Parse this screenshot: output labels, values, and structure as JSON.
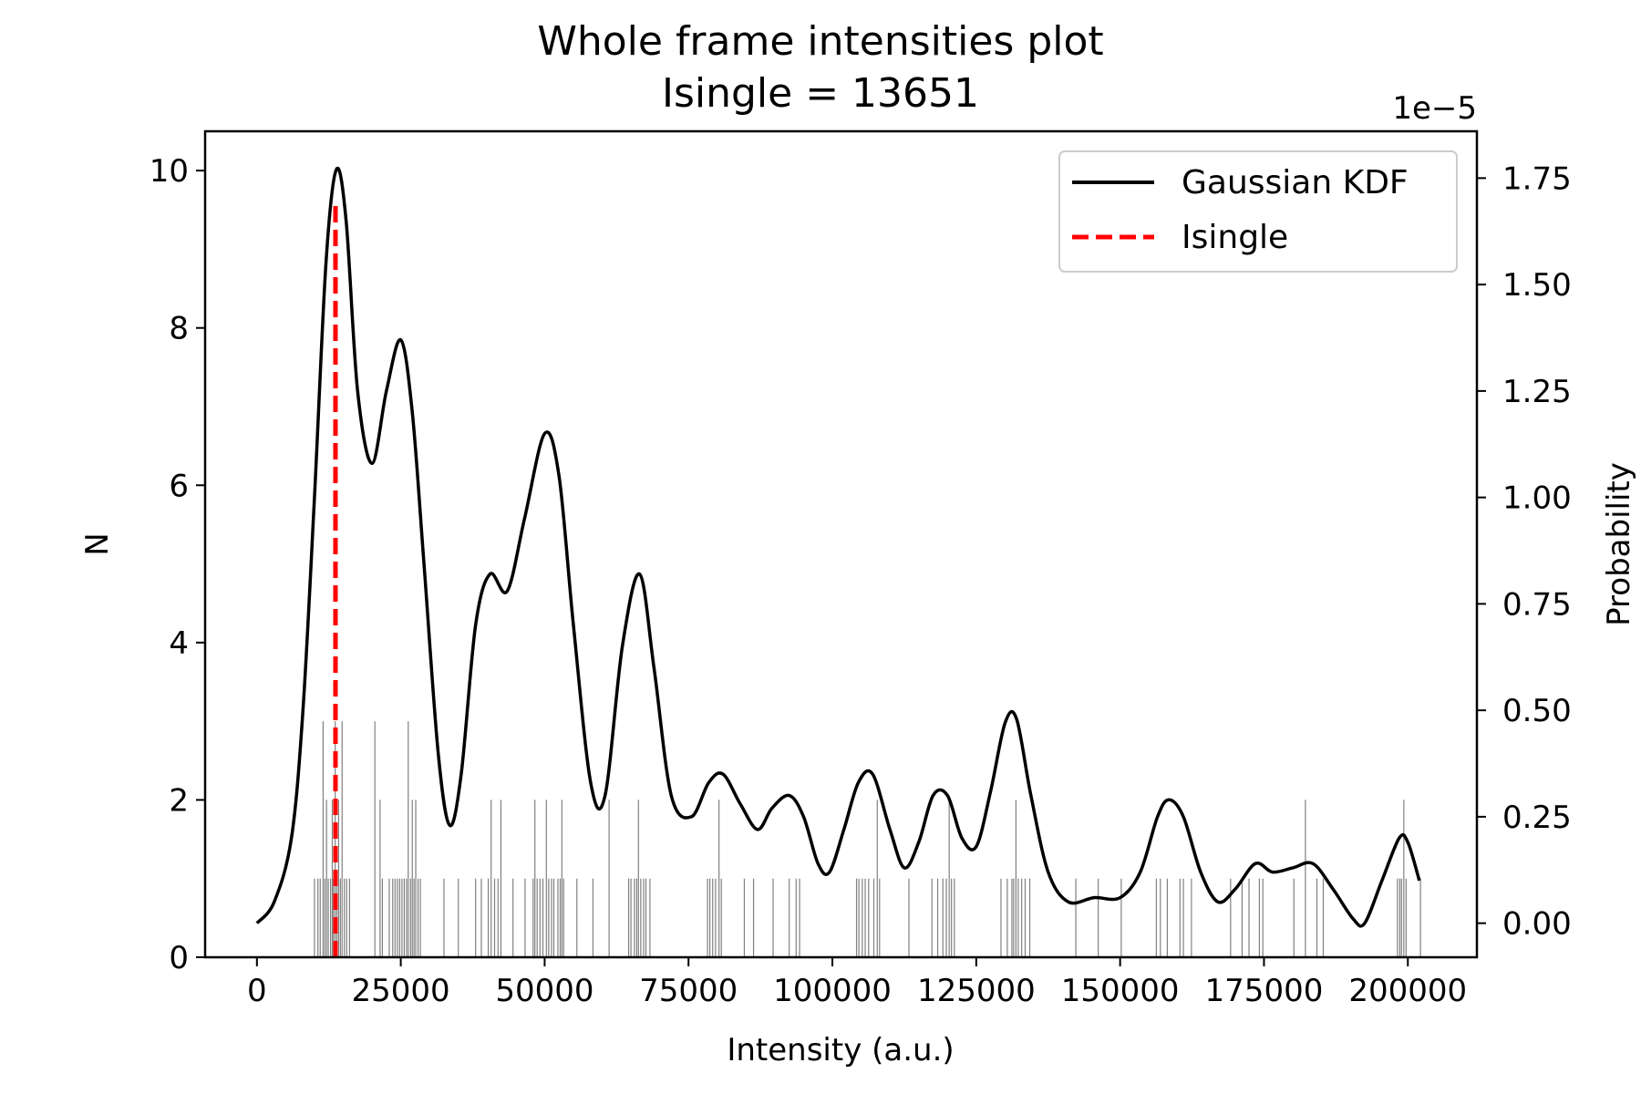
{
  "chart_data": {
    "type": "line",
    "title": "Whole frame intensities plot",
    "subtitle": "Isingle = 13651",
    "xlabel": "Intensity (a.u.)",
    "ylabel": "N",
    "y2label": "Probability",
    "y2_multiplier": "1e−5",
    "xlim": [
      -9000,
      212000
    ],
    "ylim": [
      0,
      10.5
    ],
    "y2lim": [
      -8e-07,
      1.86e-05
    ],
    "x_ticks": [
      0,
      25000,
      50000,
      75000,
      100000,
      125000,
      150000,
      175000,
      200000
    ],
    "x_tick_labels": [
      "0",
      "25000",
      "50000",
      "75000",
      "100000",
      "125000",
      "150000",
      "175000",
      "200000"
    ],
    "y_ticks": [
      0,
      2,
      4,
      6,
      8,
      10
    ],
    "y_tick_labels": [
      "0",
      "2",
      "4",
      "6",
      "8",
      "10"
    ],
    "y2_ticks": [
      0,
      2.5e-06,
      5e-06,
      7.5e-06,
      1e-05,
      1.25e-05,
      1.5e-05,
      1.75e-05
    ],
    "y2_tick_labels": [
      "0.00",
      "0.25",
      "0.50",
      "0.75",
      "1.00",
      "1.25",
      "1.50",
      "1.75"
    ],
    "legend_position": "top-right",
    "grid": false,
    "series": [
      {
        "name": "Gaussian KDF",
        "axis": "right",
        "color": "#000000",
        "style": "solid",
        "points": [
          [
            0,
            0.0
          ],
          [
            3000,
            5e-07
          ],
          [
            6000,
            2e-06
          ],
          [
            8000,
            5e-06
          ],
          [
            10000,
            1e-05
          ],
          [
            12000,
            1.55e-05
          ],
          [
            13800,
            1.77e-05
          ],
          [
            15500,
            1.65e-05
          ],
          [
            17500,
            1.25e-05
          ],
          [
            20000,
            1.08e-05
          ],
          [
            22500,
            1.25e-05
          ],
          [
            25000,
            1.37e-05
          ],
          [
            27000,
            1.2e-05
          ],
          [
            29000,
            8.5e-06
          ],
          [
            31500,
            4e-06
          ],
          [
            33500,
            2.3e-06
          ],
          [
            35500,
            3.5e-06
          ],
          [
            38000,
            7e-06
          ],
          [
            40500,
            8.2e-06
          ],
          [
            43500,
            7.8e-06
          ],
          [
            46500,
            9.5e-06
          ],
          [
            50000,
            1.15e-05
          ],
          [
            52500,
            1.05e-05
          ],
          [
            55000,
            7e-06
          ],
          [
            58000,
            3.3e-06
          ],
          [
            60500,
            3e-06
          ],
          [
            63500,
            6.5e-06
          ],
          [
            66500,
            8.2e-06
          ],
          [
            69000,
            6e-06
          ],
          [
            72000,
            3e-06
          ],
          [
            75500,
            2.5e-06
          ],
          [
            78500,
            3.3e-06
          ],
          [
            81000,
            3.5e-06
          ],
          [
            84000,
            2.8e-06
          ],
          [
            87000,
            2.2e-06
          ],
          [
            89500,
            2.7e-06
          ],
          [
            92500,
            3e-06
          ],
          [
            95000,
            2.5e-06
          ],
          [
            97500,
            1.4e-06
          ],
          [
            99500,
            1.2e-06
          ],
          [
            102000,
            2.2e-06
          ],
          [
            104500,
            3.3e-06
          ],
          [
            107000,
            3.5e-06
          ],
          [
            110000,
            2.2e-06
          ],
          [
            112500,
            1.3e-06
          ],
          [
            115000,
            1.9e-06
          ],
          [
            117500,
            3e-06
          ],
          [
            120000,
            3e-06
          ],
          [
            122500,
            2e-06
          ],
          [
            125000,
            1.8e-06
          ],
          [
            127500,
            3.1e-06
          ],
          [
            130000,
            4.7e-06
          ],
          [
            132000,
            4.8e-06
          ],
          [
            134500,
            3e-06
          ],
          [
            137500,
            1.2e-06
          ],
          [
            141000,
            5e-07
          ],
          [
            145500,
            6e-07
          ],
          [
            150000,
            6e-07
          ],
          [
            153500,
            1.2e-06
          ],
          [
            156500,
            2.5e-06
          ],
          [
            158500,
            2.9e-06
          ],
          [
            161000,
            2.5e-06
          ],
          [
            164000,
            1.2e-06
          ],
          [
            167000,
            5e-07
          ],
          [
            170000,
            8e-07
          ],
          [
            173500,
            1.4e-06
          ],
          [
            176500,
            1.2e-06
          ],
          [
            180000,
            1.3e-06
          ],
          [
            183500,
            1.4e-06
          ],
          [
            187000,
            8e-07
          ],
          [
            190500,
            1e-07
          ],
          [
            192500,
            0.0
          ],
          [
            195500,
            1e-06
          ],
          [
            198500,
            2e-06
          ],
          [
            200000,
            1.9e-06
          ],
          [
            202000,
            1e-06
          ]
        ]
      },
      {
        "name": "Isingle",
        "axis": "left",
        "color": "#ff0000",
        "style": "dashed",
        "x": 13651,
        "y_range": [
          0,
          9.6
        ]
      }
    ],
    "rug": {
      "color": "#808080",
      "axis": "left",
      "ticks": [
        [
          10000,
          1
        ],
        [
          10600,
          1
        ],
        [
          11000,
          1
        ],
        [
          11500,
          3
        ],
        [
          11800,
          1
        ],
        [
          12100,
          2
        ],
        [
          12400,
          1
        ],
        [
          12800,
          1
        ],
        [
          13100,
          2
        ],
        [
          13300,
          1
        ],
        [
          13600,
          3
        ],
        [
          13900,
          1
        ],
        [
          14200,
          2
        ],
        [
          14500,
          1
        ],
        [
          14800,
          3
        ],
        [
          15200,
          1
        ],
        [
          15600,
          1
        ],
        [
          16100,
          1
        ],
        [
          20500,
          3
        ],
        [
          21400,
          2
        ],
        [
          21800,
          1
        ],
        [
          23000,
          1
        ],
        [
          23600,
          1
        ],
        [
          24000,
          1
        ],
        [
          24400,
          1
        ],
        [
          24800,
          1
        ],
        [
          25200,
          1
        ],
        [
          25600,
          1
        ],
        [
          26000,
          1
        ],
        [
          26300,
          3
        ],
        [
          26700,
          1
        ],
        [
          27000,
          2
        ],
        [
          27300,
          1
        ],
        [
          27600,
          2
        ],
        [
          28000,
          1
        ],
        [
          28400,
          1
        ],
        [
          32500,
          1
        ],
        [
          35000,
          1
        ],
        [
          38000,
          1
        ],
        [
          39000,
          1
        ],
        [
          40200,
          1
        ],
        [
          40700,
          2
        ],
        [
          41300,
          1
        ],
        [
          41900,
          1
        ],
        [
          42400,
          2
        ],
        [
          44500,
          1
        ],
        [
          46600,
          1
        ],
        [
          48000,
          1
        ],
        [
          48300,
          2
        ],
        [
          48700,
          1
        ],
        [
          49200,
          1
        ],
        [
          49700,
          1
        ],
        [
          50300,
          2
        ],
        [
          50700,
          1
        ],
        [
          51200,
          1
        ],
        [
          51600,
          1
        ],
        [
          52300,
          1
        ],
        [
          52700,
          1
        ],
        [
          53000,
          2
        ],
        [
          53300,
          1
        ],
        [
          55600,
          1
        ],
        [
          58400,
          1
        ],
        [
          61200,
          2
        ],
        [
          64600,
          1
        ],
        [
          65000,
          1
        ],
        [
          65600,
          1
        ],
        [
          66000,
          1
        ],
        [
          66300,
          2
        ],
        [
          66700,
          1
        ],
        [
          67200,
          1
        ],
        [
          67600,
          1
        ],
        [
          68300,
          1
        ],
        [
          78300,
          1
        ],
        [
          78700,
          1
        ],
        [
          79200,
          1
        ],
        [
          79700,
          1
        ],
        [
          80300,
          2
        ],
        [
          80700,
          1
        ],
        [
          84700,
          1
        ],
        [
          86300,
          1
        ],
        [
          89700,
          1
        ],
        [
          92500,
          1
        ],
        [
          93700,
          1
        ],
        [
          94300,
          1
        ],
        [
          104200,
          1
        ],
        [
          104600,
          1
        ],
        [
          105200,
          1
        ],
        [
          105700,
          1
        ],
        [
          106300,
          1
        ],
        [
          107200,
          1
        ],
        [
          107800,
          2
        ],
        [
          108200,
          1
        ],
        [
          113300,
          1
        ],
        [
          117300,
          1
        ],
        [
          118300,
          1
        ],
        [
          119200,
          1
        ],
        [
          119800,
          1
        ],
        [
          120300,
          2
        ],
        [
          120700,
          1
        ],
        [
          121200,
          1
        ],
        [
          129300,
          1
        ],
        [
          130400,
          1
        ],
        [
          131200,
          1
        ],
        [
          131500,
          1
        ],
        [
          131900,
          2
        ],
        [
          132300,
          1
        ],
        [
          132900,
          1
        ],
        [
          133500,
          1
        ],
        [
          134300,
          1
        ],
        [
          142300,
          1
        ],
        [
          146200,
          1
        ],
        [
          150200,
          1
        ],
        [
          156300,
          1
        ],
        [
          157000,
          1
        ],
        [
          158200,
          1
        ],
        [
          160400,
          1
        ],
        [
          161000,
          1
        ],
        [
          162400,
          1
        ],
        [
          169200,
          1
        ],
        [
          171200,
          1
        ],
        [
          172400,
          1
        ],
        [
          174200,
          1
        ],
        [
          174800,
          1
        ],
        [
          180200,
          1
        ],
        [
          182200,
          2
        ],
        [
          184200,
          1
        ],
        [
          185300,
          1
        ],
        [
          198200,
          1
        ],
        [
          198600,
          1
        ],
        [
          198900,
          1
        ],
        [
          199300,
          2
        ],
        [
          199700,
          1
        ],
        [
          202200,
          1
        ]
      ]
    }
  }
}
